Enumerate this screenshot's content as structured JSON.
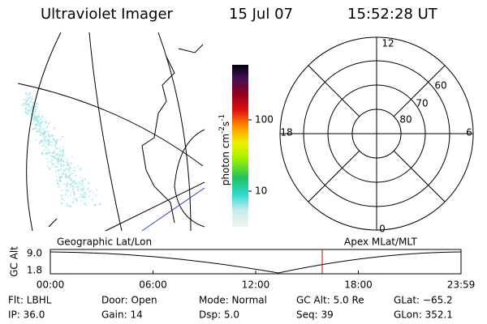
{
  "header": {
    "title": "Ultraviolet Imager",
    "date": "15 Jul 07",
    "time": "15:52:28 UT"
  },
  "colorbar": {
    "unit": "photon cm",
    "exp1": "-2",
    "unit2": "s",
    "exp2": "-1",
    "ticks": [
      "100",
      "10"
    ]
  },
  "polar": {
    "mlt_labels": [
      "12",
      "18",
      "6",
      "0"
    ],
    "lat_labels": [
      "60",
      "70",
      "80"
    ]
  },
  "timeline": {
    "y_label": "GC Alt",
    "y_ticks": [
      "9.0",
      "1.8"
    ],
    "left_title": "Geographic Lat/Lon",
    "right_title": "Apex MLat/MLT",
    "x_ticks": [
      "00:00",
      "06:00",
      "12:00",
      "18:00",
      "23:59"
    ]
  },
  "info": [
    [
      "Flt: LBHL",
      "Door: Open",
      "Mode: Normal",
      "GC Alt: 5.0 Re",
      "GLat: −65.2"
    ],
    [
      "IP: 36.0",
      "Gain: 14",
      "Dsp:    5.0",
      "Seq: 39",
      "GLon: 352.1"
    ]
  ]
}
